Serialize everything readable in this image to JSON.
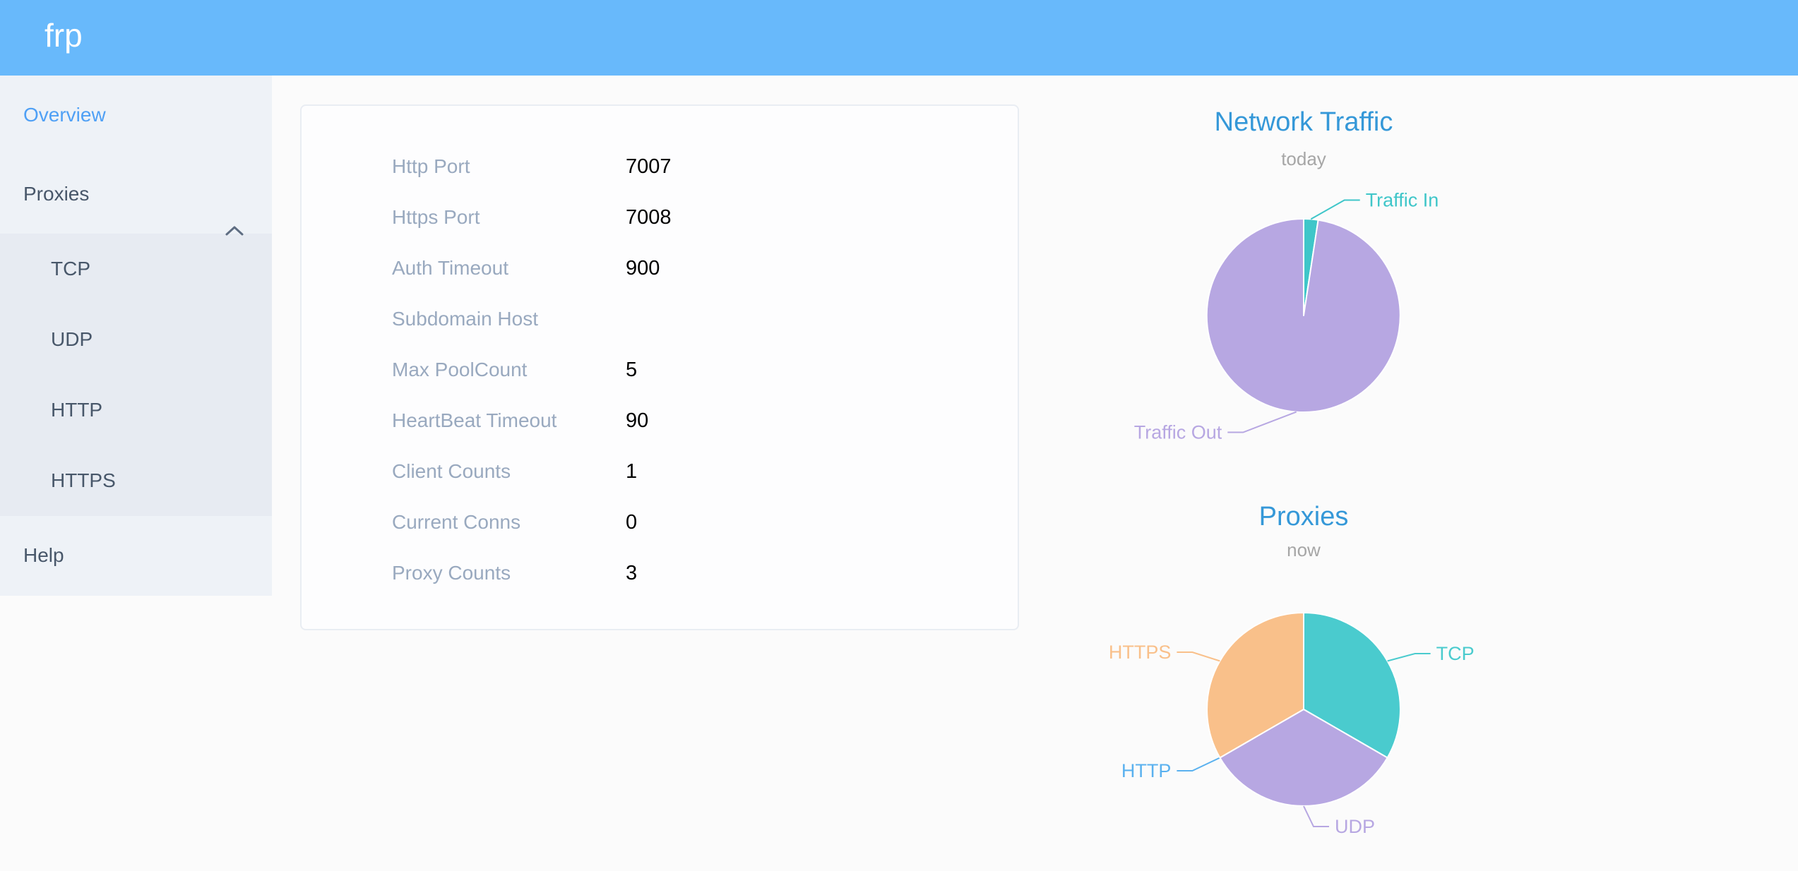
{
  "header": {
    "logo": "frp"
  },
  "sidebar": {
    "items": [
      {
        "label": "Overview",
        "active": true
      },
      {
        "label": "Proxies",
        "expanded": true
      },
      {
        "label": "Help"
      }
    ],
    "proxies_submenu": [
      {
        "label": "TCP"
      },
      {
        "label": "UDP"
      },
      {
        "label": "HTTP"
      },
      {
        "label": "HTTPS"
      }
    ]
  },
  "overview_panel": {
    "rows": [
      {
        "label": "Http Port",
        "value": "7007"
      },
      {
        "label": "Https Port",
        "value": "7008"
      },
      {
        "label": "Auth Timeout",
        "value": "900"
      },
      {
        "label": "Subdomain Host",
        "value": ""
      },
      {
        "label": "Max PoolCount",
        "value": "5"
      },
      {
        "label": "HeartBeat Timeout",
        "value": "90"
      },
      {
        "label": "Client Counts",
        "value": "1"
      },
      {
        "label": "Current Conns",
        "value": "0"
      },
      {
        "label": "Proxy Counts",
        "value": "3"
      }
    ]
  },
  "chart_data": [
    {
      "type": "pie",
      "title": "Network Traffic",
      "subtitle": "today",
      "value_note": "percent share estimated from slice angles; no numeric values shown on screen",
      "legend_position": "none",
      "slices": [
        {
          "label": "Traffic In",
          "value": 2.4,
          "color": "#3fc6c9"
        },
        {
          "label": "Traffic Out",
          "value": 97.6,
          "color": "#b7a7e2"
        }
      ]
    },
    {
      "type": "pie",
      "title": "Proxies",
      "subtitle": "now",
      "value_note": "counts by proxy type; total matches Proxy Counts = 3",
      "legend_position": "none",
      "slices": [
        {
          "label": "TCP",
          "value": 1,
          "color": "#4acbce"
        },
        {
          "label": "UDP",
          "value": 1,
          "color": "#b7a7e2"
        },
        {
          "label": "HTTP",
          "value": 0,
          "color": "#5ab1ef"
        },
        {
          "label": "HTTPS",
          "value": 1,
          "color": "#f9c08a"
        }
      ]
    }
  ],
  "colors": {
    "header_bg": "#68b9fb",
    "sidebar_bg": "#eef2f7",
    "submenu_bg": "#e7ebf2",
    "sidebar_text": "#48576a",
    "sidebar_active_text": "#4fa0f5",
    "panel_label": "#99a9bf",
    "panel_value": "#000000",
    "chart_title": "#3598d8",
    "chart_subtitle": "#a6a6a6"
  }
}
